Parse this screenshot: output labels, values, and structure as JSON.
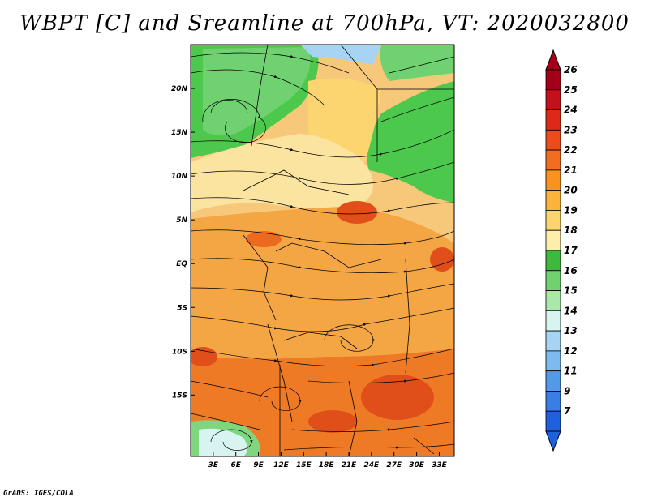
{
  "title": "WBPT [C] and Sreamline at 700hPa, VT: 2020032800",
  "credit": "GrADS: IGES/COLA",
  "map": {
    "lon_range": [
      0,
      35
    ],
    "lat_range": [
      -22,
      25
    ],
    "lon_ticks": [
      "3E",
      "6E",
      "9E",
      "12E",
      "15E",
      "18E",
      "21E",
      "24E",
      "27E",
      "30E",
      "33E"
    ],
    "lat_ticks": [
      "20N",
      "15N",
      "10N",
      "5N",
      "EQ",
      "5S",
      "10S",
      "15S"
    ],
    "regions": [
      {
        "name": "north-west",
        "color": "#4cc94c"
      },
      {
        "name": "north-east",
        "color": "#4cc94c"
      },
      {
        "name": "sahel-belt",
        "color": "#fbe3a0"
      },
      {
        "name": "congo-basin",
        "color": "#f4a544"
      },
      {
        "name": "south",
        "color": "#ee7a25"
      },
      {
        "name": "hotspots",
        "color": "#e04f1a"
      },
      {
        "name": "south-west-cool",
        "color": "#7fd67f"
      }
    ]
  },
  "colorbar": {
    "labels": [
      "26",
      "25",
      "24",
      "23",
      "22",
      "21",
      "20",
      "19",
      "18",
      "17",
      "16",
      "15",
      "14",
      "13",
      "12",
      "11",
      "9",
      "7"
    ],
    "colors": [
      "#a4001a",
      "#c4101a",
      "#dc2a16",
      "#ec4b1a",
      "#f06e1e",
      "#f7931e",
      "#fbb33c",
      "#fdd570",
      "#fdeeaa",
      "#3fb83f",
      "#6fd16f",
      "#a8e8a8",
      "#d8f4f0",
      "#a8d4f4",
      "#7cbaf0",
      "#5299e8",
      "#3a7ee4",
      "#1f60dc"
    ]
  }
}
